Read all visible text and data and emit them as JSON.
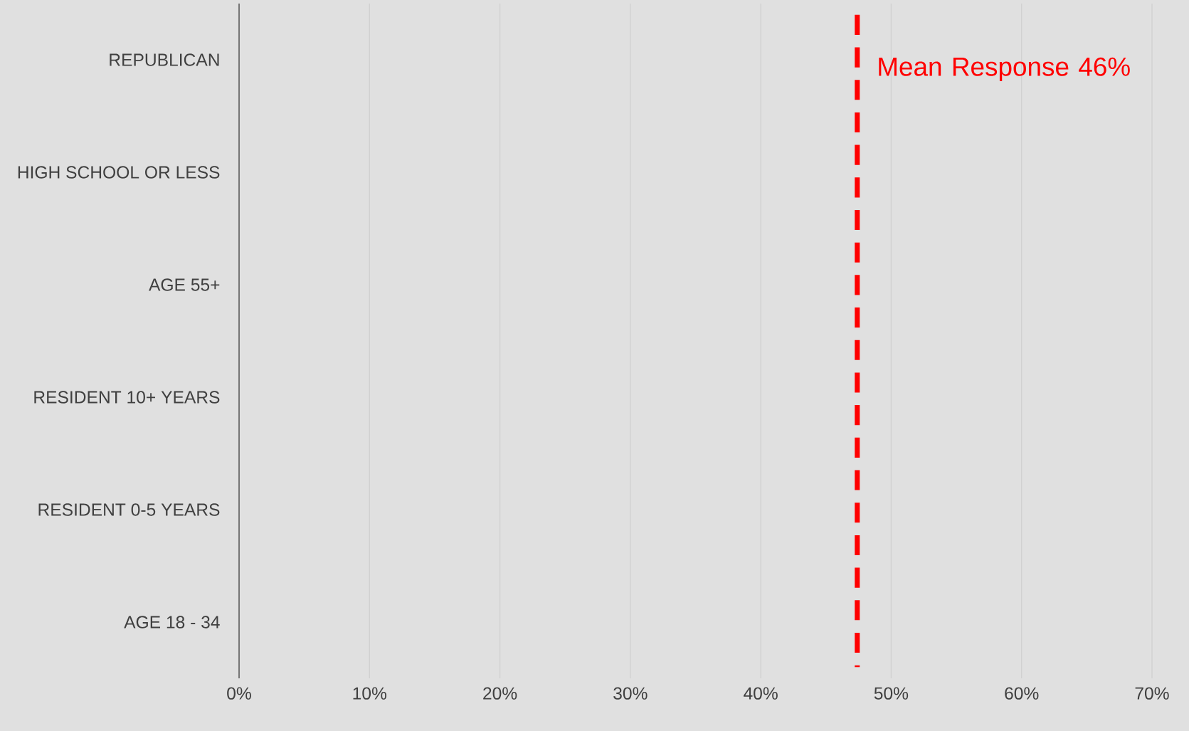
{
  "chart_data": {
    "type": "bar",
    "orientation": "horizontal",
    "categories": [
      "REPUBLICAN",
      "HIGH SCHOOL OR LESS",
      "AGE 55+",
      "RESIDENT 10+ YEARS",
      "RESIDENT 0-5 YEARS",
      "AGE 18 - 34"
    ],
    "values": [
      null,
      null,
      null,
      null,
      null,
      null
    ],
    "xlim": [
      0,
      70
    ],
    "xticks": [
      {
        "value": 0,
        "label": "0%"
      },
      {
        "value": 10,
        "label": "10%"
      },
      {
        "value": 20,
        "label": "20%"
      },
      {
        "value": 30,
        "label": "30%"
      },
      {
        "value": 40,
        "label": "40%"
      },
      {
        "value": 50,
        "label": "50%"
      },
      {
        "value": 60,
        "label": "60%"
      },
      {
        "value": 70,
        "label": "70%"
      }
    ],
    "ref_lines": [
      {
        "axis": "x",
        "value": 47.4,
        "label": "Mean Response 46%",
        "color": "#ff0000",
        "line_style": "dashed"
      }
    ],
    "grid": "x"
  }
}
